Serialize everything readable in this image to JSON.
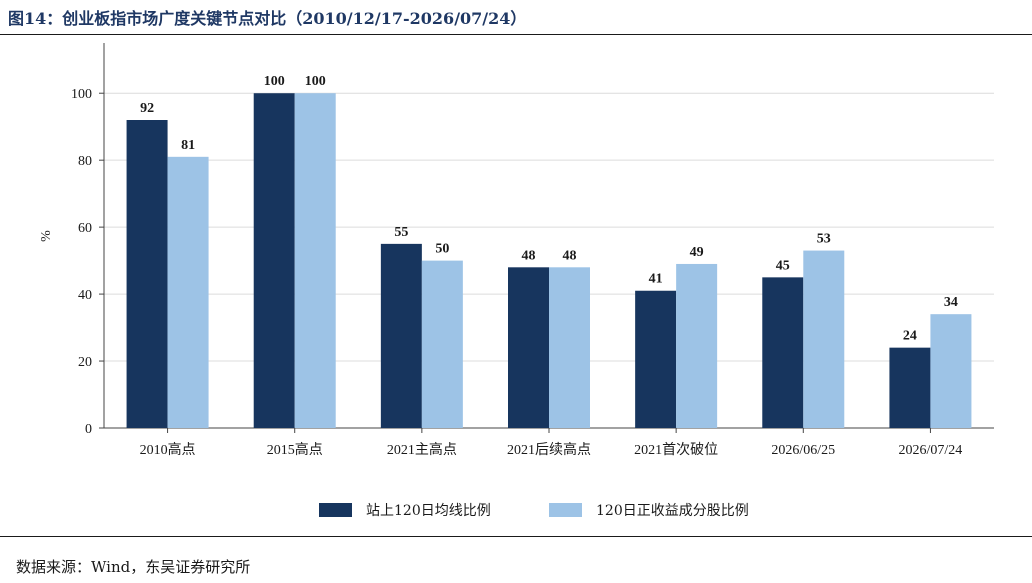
{
  "figure": {
    "title": "图14：创业板指市场广度关键节点对比（2010/12/17-2026/07/24）",
    "source": "数据来源：Wind，东吴证券研究所"
  },
  "chart_data": {
    "type": "bar",
    "categories": [
      "2010高点",
      "2015高点",
      "2021主高点",
      "2021后续高点",
      "2021首次破位",
      "2026/06/25",
      "2026/07/24"
    ],
    "series": [
      {
        "name": "站上120日均线比例",
        "values": [
          92,
          100,
          55,
          48,
          41,
          45,
          24
        ],
        "color": "#17355e"
      },
      {
        "name": "120日正收益成分股比例",
        "values": [
          81,
          100,
          50,
          48,
          49,
          53,
          34
        ],
        "color": "#9dc3e6"
      }
    ],
    "ylabel": "%",
    "ylim": [
      0,
      115
    ],
    "yticks": [
      0,
      20,
      40,
      60,
      80,
      100
    ],
    "grid": true,
    "legend": "bottom-center"
  }
}
